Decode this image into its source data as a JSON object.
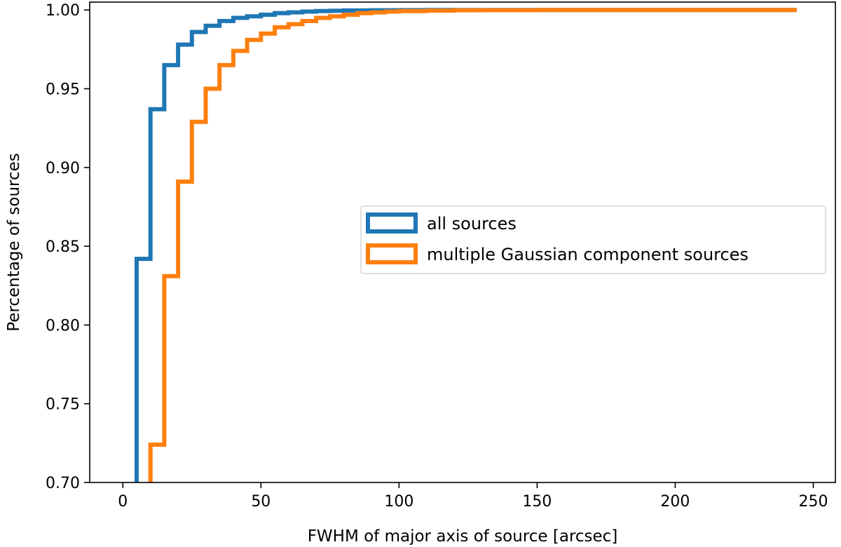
{
  "chart_data": {
    "type": "line",
    "drawstyle": "steps-cumulative-histogram",
    "title": "",
    "xlabel": "FWHM of major axis of source [arcsec]",
    "ylabel": "Percentage of sources",
    "xlim": [
      -12,
      258
    ],
    "ylim": [
      0.7,
      1.005
    ],
    "xticks": [
      0,
      50,
      100,
      150,
      200,
      250
    ],
    "yticks": [
      0.7,
      0.75,
      0.8,
      0.85,
      0.9,
      0.95,
      1.0
    ],
    "xtick_labels": [
      "0",
      "50",
      "100",
      "150",
      "200",
      "250"
    ],
    "ytick_labels": [
      "0.70",
      "0.75",
      "0.80",
      "0.85",
      "0.90",
      "0.95",
      "1.00"
    ],
    "grid": false,
    "legend": {
      "placement": "center-right"
    },
    "series": [
      {
        "name": "all sources",
        "color": "#1f77b4",
        "x": [
          5,
          10,
          15,
          20,
          25,
          30,
          35,
          40,
          45,
          50,
          55,
          60,
          65,
          70,
          75,
          80,
          90,
          100,
          110,
          244
        ],
        "y": [
          0.842,
          0.937,
          0.965,
          0.978,
          0.986,
          0.99,
          0.993,
          0.995,
          0.996,
          0.997,
          0.998,
          0.9985,
          0.999,
          0.9993,
          0.9995,
          0.9997,
          0.9998,
          0.9999,
          1.0,
          1.0
        ]
      },
      {
        "name": "multiple Gaussian component sources",
        "color": "#ff7f0e",
        "x": [
          10,
          15,
          20,
          25,
          30,
          35,
          40,
          45,
          50,
          55,
          60,
          65,
          70,
          75,
          80,
          85,
          90,
          95,
          100,
          110,
          120,
          130,
          150,
          244
        ],
        "y": [
          0.724,
          0.831,
          0.891,
          0.929,
          0.95,
          0.965,
          0.974,
          0.981,
          0.985,
          0.989,
          0.991,
          0.993,
          0.995,
          0.996,
          0.997,
          0.998,
          0.9985,
          0.999,
          0.9993,
          0.9996,
          0.9998,
          0.9999,
          1.0,
          1.0
        ]
      }
    ]
  }
}
